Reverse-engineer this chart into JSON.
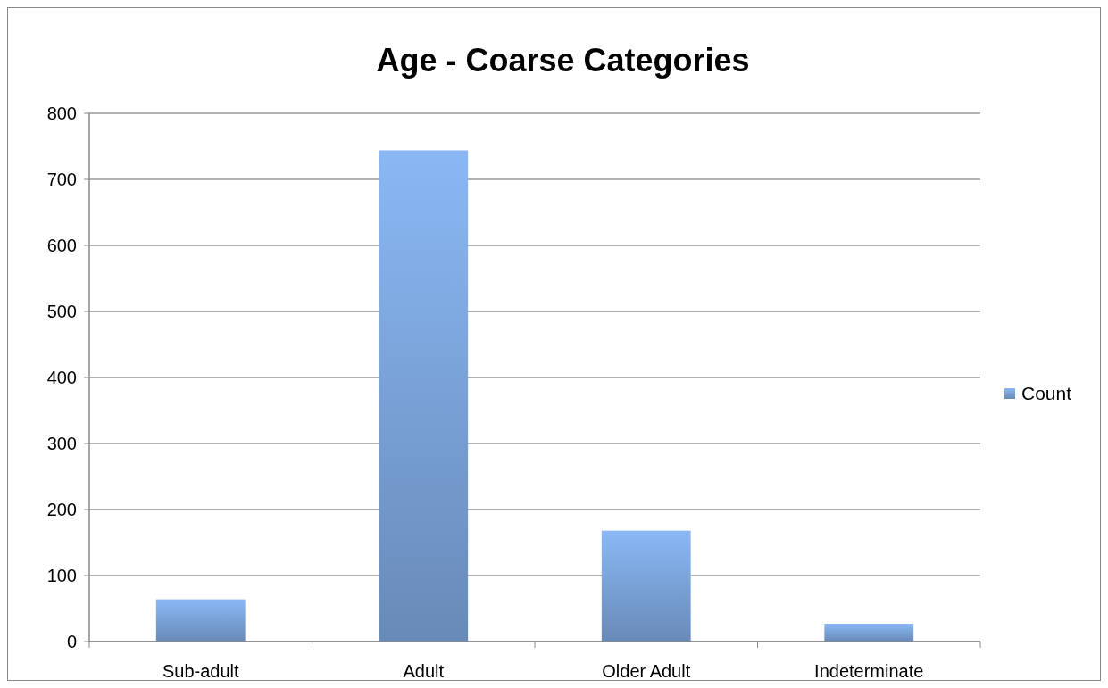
{
  "chart_data": {
    "type": "bar",
    "title": "Age - Coarse Categories",
    "categories": [
      "Sub-adult",
      "Adult",
      "Older Adult",
      "Indeterminate"
    ],
    "series": [
      {
        "name": "Count",
        "color": "#8ab8f5",
        "values": [
          64,
          744,
          168,
          27
        ]
      }
    ],
    "ylim": [
      0,
      800
    ],
    "yticks": [
      0,
      100,
      200,
      300,
      400,
      500,
      600,
      700,
      800
    ],
    "grid": "y",
    "legend": "right"
  }
}
